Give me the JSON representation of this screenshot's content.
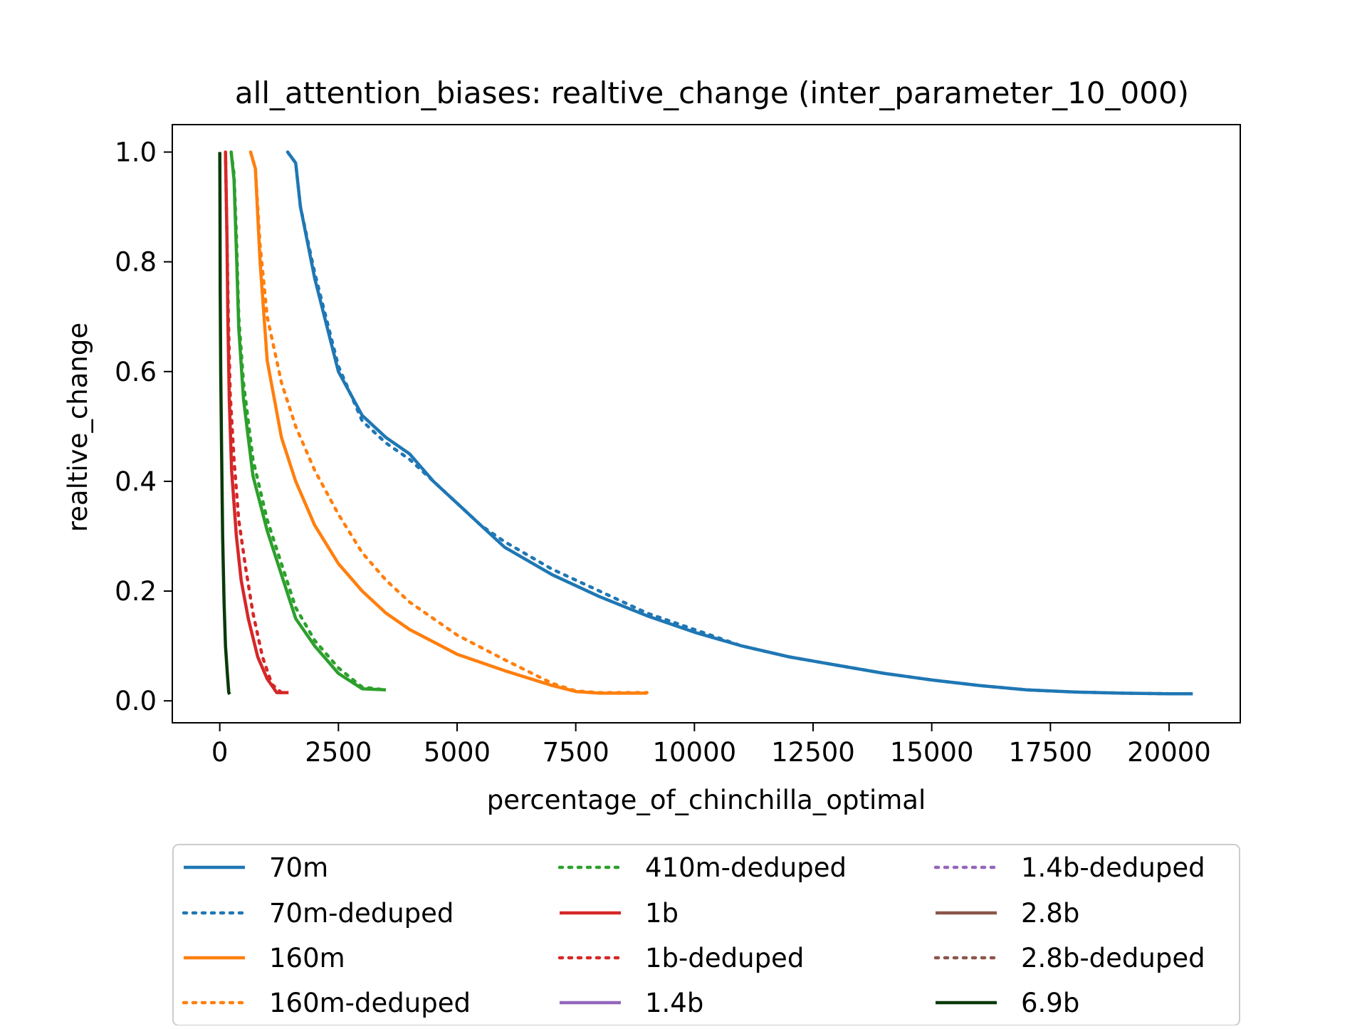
{
  "chart_data": {
    "type": "line",
    "title": "all_attention_biases: realtive_change (inter_parameter_10_000)",
    "xlabel": "percentage_of_chinchilla_optimal",
    "ylabel": "realtive_change",
    "xlim": [
      -1000,
      21500
    ],
    "ylim": [
      -0.04,
      1.05
    ],
    "xticks": [
      0,
      2500,
      5000,
      7500,
      10000,
      12500,
      15000,
      17500,
      20000
    ],
    "yticks": [
      0.0,
      0.2,
      0.4,
      0.6,
      0.8,
      1.0
    ],
    "xtick_labels": [
      "0",
      "2500",
      "5000",
      "7500",
      "10000",
      "12500",
      "15000",
      "17500",
      "20000"
    ],
    "ytick_labels": [
      "0.0",
      "0.2",
      "0.4",
      "0.6",
      "0.8",
      "1.0"
    ],
    "grid": false,
    "legend_position": "below-plot",
    "legend_columns": 3,
    "series": [
      {
        "name": "70m",
        "color": "#1f77b4",
        "style": "solid",
        "x": [
          1430,
          1600,
          1700,
          2000,
          2500,
          3000,
          3500,
          4000,
          4200,
          4500,
          5000,
          5500,
          6000,
          7000,
          8000,
          9000,
          10000,
          11000,
          12000,
          13000,
          14000,
          15000,
          16000,
          17000,
          18000,
          19000,
          20000,
          20500
        ],
        "y": [
          1.0,
          0.98,
          0.9,
          0.77,
          0.6,
          0.52,
          0.48,
          0.45,
          0.43,
          0.4,
          0.36,
          0.32,
          0.28,
          0.23,
          0.19,
          0.155,
          0.125,
          0.1,
          0.08,
          0.065,
          0.05,
          0.038,
          0.028,
          0.02,
          0.016,
          0.014,
          0.013,
          0.013
        ]
      },
      {
        "name": "70m-deduped",
        "color": "#1f77b4",
        "style": "dotted",
        "x": [
          1430,
          1600,
          1700,
          2000,
          2500,
          3000,
          3500,
          4000,
          4500,
          5000,
          5500,
          6000,
          7000,
          8000,
          9000,
          10000,
          11000,
          12000,
          13000,
          14000,
          15000,
          16000,
          17000,
          18000,
          19000,
          20000,
          20500
        ],
        "y": [
          1.0,
          0.98,
          0.9,
          0.78,
          0.61,
          0.51,
          0.47,
          0.44,
          0.4,
          0.36,
          0.32,
          0.29,
          0.24,
          0.2,
          0.16,
          0.13,
          0.1,
          0.08,
          0.065,
          0.05,
          0.038,
          0.028,
          0.02,
          0.016,
          0.014,
          0.013,
          0.013
        ]
      },
      {
        "name": "160m",
        "color": "#ff7f0e",
        "style": "solid",
        "x": [
          650,
          750,
          850,
          1000,
          1300,
          1600,
          2000,
          2500,
          3000,
          3500,
          4000,
          5000,
          6000,
          7000,
          7500,
          8000,
          9000
        ],
        "y": [
          1.0,
          0.97,
          0.8,
          0.62,
          0.48,
          0.4,
          0.32,
          0.25,
          0.2,
          0.16,
          0.13,
          0.085,
          0.055,
          0.028,
          0.017,
          0.014,
          0.014
        ]
      },
      {
        "name": "160m-deduped",
        "color": "#ff7f0e",
        "style": "dotted",
        "x": [
          650,
          750,
          850,
          1000,
          1300,
          1600,
          2000,
          2500,
          3000,
          3500,
          4000,
          5000,
          6000,
          7000,
          7500,
          8000,
          9000
        ],
        "y": [
          1.0,
          0.97,
          0.83,
          0.7,
          0.58,
          0.5,
          0.42,
          0.34,
          0.27,
          0.22,
          0.18,
          0.12,
          0.075,
          0.032,
          0.018,
          0.015,
          0.015
        ]
      },
      {
        "name": "410m-deduped",
        "color": "#2ca02c",
        "style": "dotted",
        "x": [
          240,
          300,
          350,
          400,
          500,
          700,
          1000,
          1300,
          1600,
          2000,
          2500,
          3000,
          3500
        ],
        "y": [
          1.0,
          0.96,
          0.85,
          0.7,
          0.58,
          0.44,
          0.33,
          0.25,
          0.17,
          0.11,
          0.06,
          0.025,
          0.02
        ]
      },
      {
        "name": "1b",
        "color": "#d62728",
        "style": "solid",
        "x": [
          120,
          150,
          170,
          200,
          250,
          350,
          450,
          600,
          800,
          1000,
          1200,
          1450
        ],
        "y": [
          1.0,
          0.85,
          0.7,
          0.55,
          0.42,
          0.3,
          0.22,
          0.15,
          0.08,
          0.04,
          0.015,
          0.015
        ]
      },
      {
        "name": "1b-deduped",
        "color": "#d62728",
        "style": "dotted",
        "x": [
          120,
          150,
          180,
          220,
          300,
          400,
          550,
          700,
          900,
          1100,
          1300,
          1400
        ],
        "y": [
          1.0,
          0.85,
          0.7,
          0.56,
          0.44,
          0.33,
          0.24,
          0.16,
          0.08,
          0.03,
          0.015,
          0.015
        ]
      },
      {
        "name": "1.4b",
        "color": "#9467bd",
        "style": "solid",
        "x": [],
        "y": []
      },
      {
        "name": "1.4b-deduped",
        "color": "#9467bd",
        "style": "dotted",
        "x": [],
        "y": []
      },
      {
        "name": "2.8b",
        "color": "#8c564b",
        "style": "solid",
        "x": [],
        "y": []
      },
      {
        "name": "2.8b-deduped",
        "color": "#8c564b",
        "style": "dotted",
        "x": [],
        "y": []
      },
      {
        "name": "6.9b",
        "color": "#0a3a0a",
        "style": "solid",
        "x": [
          0,
          5,
          10,
          20,
          40,
          60,
          90,
          120,
          160,
          190,
          210
        ],
        "y": [
          1.0,
          0.9,
          0.75,
          0.6,
          0.45,
          0.3,
          0.18,
          0.1,
          0.05,
          0.015,
          0.012
        ]
      }
    ],
    "extra_unlabeled_series": [
      {
        "color": "#2ca02c",
        "style": "solid",
        "x": [
          240,
          300,
          350,
          400,
          500,
          700,
          1000,
          1300,
          1600,
          2000,
          2500,
          3000,
          3500
        ],
        "y": [
          1.0,
          0.95,
          0.82,
          0.68,
          0.55,
          0.41,
          0.31,
          0.23,
          0.15,
          0.1,
          0.05,
          0.022,
          0.02
        ]
      }
    ]
  }
}
